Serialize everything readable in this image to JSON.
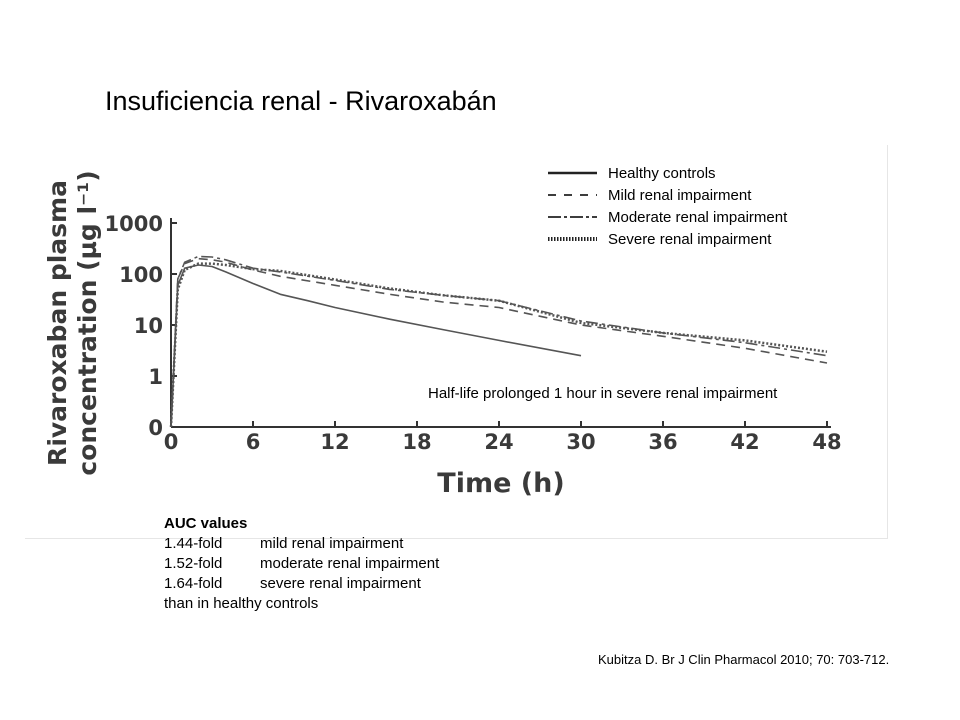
{
  "slide": {
    "title": "Insuficiencia renal - Rivaroxabán",
    "source": "Kubitza D. Br J Clin Pharmacol 2010; 70: 703-712."
  },
  "auc": {
    "title": "AUC values",
    "rows": [
      {
        "fold": "1.44-fold",
        "label": "mild renal impairment"
      },
      {
        "fold": "1.52-fold",
        "label": "moderate renal impairment"
      },
      {
        "fold": "1.64-fold",
        "label": "severe renal impairment"
      }
    ],
    "footer": "than in healthy controls"
  },
  "chart_data": {
    "type": "line",
    "title": "",
    "xlabel": "Time (h)",
    "ylabel": "Rivaroxaban plasma concentration (µg l⁻¹)",
    "x_ticks": [
      "0",
      "6",
      "12",
      "18",
      "24",
      "30",
      "36",
      "42",
      "48"
    ],
    "y_ticks": [
      "0",
      "1",
      "10",
      "100",
      "1000"
    ],
    "xlim": [
      0,
      48
    ],
    "y_scale": "log",
    "legend_position": "top-right",
    "annotation": "Half-life prolonged 1 hour in severe renal impairment",
    "colors": {
      "line": "#555555",
      "axis": "#333333"
    },
    "series": [
      {
        "name": "Healthy controls",
        "style": "solid",
        "x": [
          0,
          0.5,
          1,
          2,
          3,
          4,
          6,
          8,
          10,
          12,
          16,
          20,
          24,
          30
        ],
        "y": [
          0,
          60,
          130,
          150,
          140,
          110,
          65,
          40,
          30,
          22,
          13,
          8,
          5,
          2.5
        ]
      },
      {
        "name": "Mild renal impairment",
        "style": "dashed",
        "x": [
          0,
          0.5,
          1,
          2,
          3,
          4,
          6,
          8,
          12,
          16,
          20,
          24,
          30,
          36,
          42,
          48
        ],
        "y": [
          0,
          80,
          160,
          200,
          190,
          170,
          120,
          90,
          60,
          40,
          28,
          22,
          10,
          6,
          3.5,
          1.8
        ]
      },
      {
        "name": "Moderate renal impairment",
        "style": "dash-dot",
        "x": [
          0,
          0.5,
          1,
          2,
          3,
          4,
          6,
          8,
          12,
          16,
          20,
          24,
          30,
          36,
          42,
          48
        ],
        "y": [
          0,
          80,
          170,
          220,
          215,
          190,
          130,
          110,
          75,
          50,
          38,
          30,
          12,
          7,
          4.5,
          2.5
        ]
      },
      {
        "name": "Severe renal impairment",
        "style": "dotted",
        "x": [
          0,
          0.5,
          1,
          2,
          3,
          4,
          6,
          8,
          12,
          16,
          20,
          24,
          30,
          36,
          42,
          48
        ],
        "y": [
          0,
          50,
          120,
          160,
          160,
          150,
          125,
          115,
          78,
          52,
          38,
          30,
          11,
          7,
          5,
          3
        ]
      }
    ]
  }
}
